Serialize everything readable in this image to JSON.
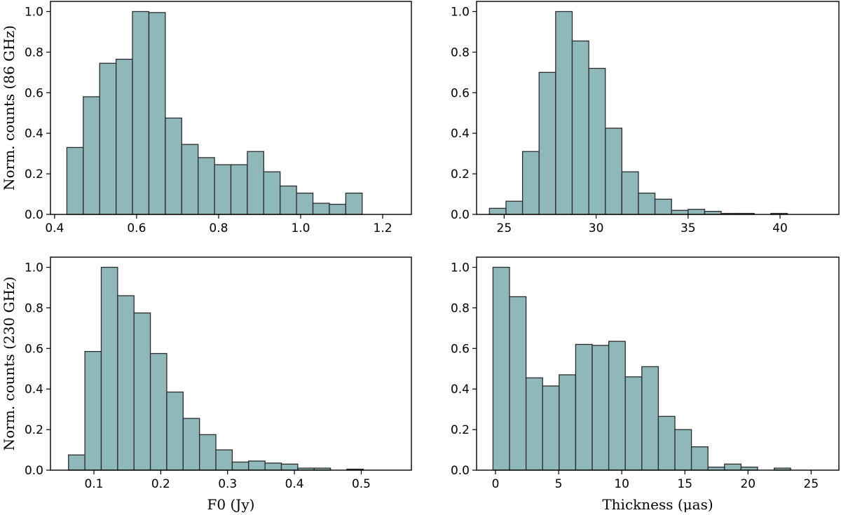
{
  "chart_data": [
    {
      "type": "bar",
      "panel": "top-left",
      "ylabel": "Norm. counts (86 GHz)",
      "xlabel": "",
      "xlim": [
        0.39,
        1.27
      ],
      "ylim": [
        0,
        1.05
      ],
      "xticks": [
        0.4,
        0.6,
        0.8,
        1.0,
        1.2
      ],
      "xticklabels": [
        "0.4",
        "0.6",
        "0.8",
        "1.0",
        "1.2"
      ],
      "yticks": [
        0,
        0.2,
        0.4,
        0.6,
        0.8,
        1.0
      ],
      "yticklabels": [
        "0.0",
        "0.2",
        "0.4",
        "0.6",
        "0.8",
        "1.0"
      ],
      "bin_start": 0.43,
      "bin_width": 0.04,
      "values": [
        0.33,
        0.58,
        0.745,
        0.765,
        1.0,
        0.995,
        0.475,
        0.345,
        0.28,
        0.245,
        0.245,
        0.31,
        0.21,
        0.14,
        0.105,
        0.055,
        0.05,
        0.105
      ]
    },
    {
      "type": "bar",
      "panel": "top-right",
      "ylabel": "",
      "xlabel": "",
      "xlim": [
        23.5,
        43.2
      ],
      "ylim": [
        0,
        1.05
      ],
      "xticks": [
        25,
        30,
        35,
        40
      ],
      "xticklabels": [
        "25",
        "30",
        "35",
        "40"
      ],
      "yticks": [
        0,
        0.2,
        0.4,
        0.6,
        0.8,
        1.0
      ],
      "yticklabels": [
        "0.0",
        "0.2",
        "0.4",
        "0.6",
        "0.8",
        "1.0"
      ],
      "bin_start": 24.2,
      "bin_width": 0.9,
      "values": [
        0.03,
        0.065,
        0.31,
        0.7,
        1.0,
        0.855,
        0.72,
        0.425,
        0.21,
        0.105,
        0.075,
        0.02,
        0.025,
        0.015,
        0.005,
        0.005,
        0,
        0.005,
        0,
        0
      ]
    },
    {
      "type": "bar",
      "panel": "bottom-left",
      "ylabel": "Norm. counts (230 GHz)",
      "xlabel": "F0 (Jy)",
      "xlim": [
        0.035,
        0.575
      ],
      "ylim": [
        0,
        1.05
      ],
      "xticks": [
        0.1,
        0.2,
        0.3,
        0.4,
        0.5
      ],
      "xticklabels": [
        "0.1",
        "0.2",
        "0.3",
        "0.4",
        "0.5"
      ],
      "yticks": [
        0,
        0.2,
        0.4,
        0.6,
        0.8,
        1.0
      ],
      "yticklabels": [
        "0.0",
        "0.2",
        "0.4",
        "0.6",
        "0.8",
        "1.0"
      ],
      "bin_start": 0.062,
      "bin_width": 0.0245,
      "values": [
        0.075,
        0.585,
        1.0,
        0.86,
        0.775,
        0.575,
        0.385,
        0.255,
        0.175,
        0.1,
        0.04,
        0.045,
        0.035,
        0.03,
        0.01,
        0.01,
        0,
        0.005,
        0,
        0
      ]
    },
    {
      "type": "bar",
      "panel": "bottom-right",
      "ylabel": "",
      "xlabel": "Thickness (μas)",
      "xlim": [
        -1.5,
        27.2
      ],
      "ylim": [
        0,
        1.05
      ],
      "xticks": [
        0,
        5,
        10,
        15,
        20,
        25
      ],
      "xticklabels": [
        "0",
        "5",
        "10",
        "15",
        "20",
        "25"
      ],
      "yticks": [
        0,
        0.2,
        0.4,
        0.6,
        0.8,
        1.0
      ],
      "yticklabels": [
        "0.0",
        "0.2",
        "0.4",
        "0.6",
        "0.8",
        "1.0"
      ],
      "bin_start": -0.2,
      "bin_width": 1.31,
      "values": [
        1.0,
        0.855,
        0.455,
        0.415,
        0.47,
        0.62,
        0.615,
        0.635,
        0.46,
        0.51,
        0.265,
        0.2,
        0.115,
        0.015,
        0.03,
        0.015,
        0,
        0.01,
        0,
        0
      ]
    }
  ]
}
